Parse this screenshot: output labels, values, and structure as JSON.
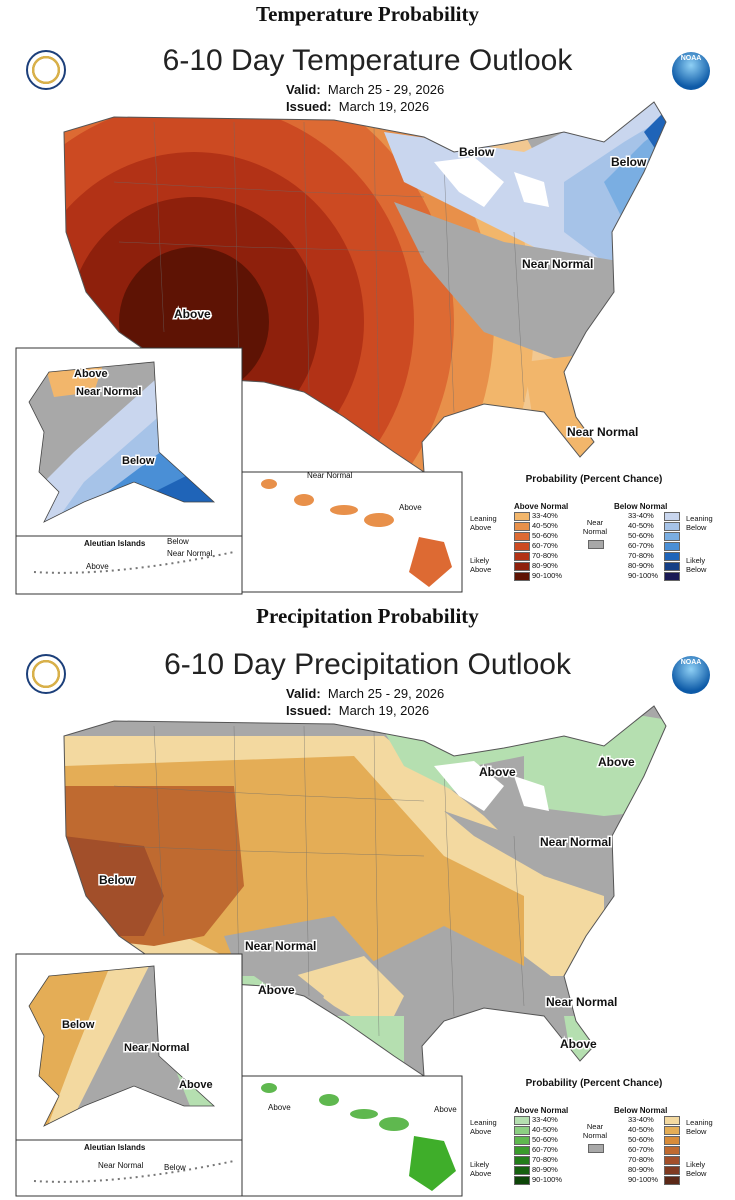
{
  "temperature": {
    "section_title": "Temperature Probability",
    "map_title": "6-10 Day Temperature Outlook",
    "valid_label": "Valid:",
    "valid_value": "March 25 - 29, 2026",
    "issued_label": "Issued:",
    "issued_value": "March 19, 2026",
    "labels": {
      "below_great_lakes": "Below",
      "below_new_england": "Below",
      "near_normal_east": "Near Normal",
      "above_southwest": "Above",
      "near_normal_florida": "Near Normal",
      "ak_above": "Above",
      "ak_near_normal": "Near Normal",
      "ak_below": "Below",
      "aleutian_title": "Aleutian Islands",
      "aleutian_above": "Above",
      "aleutian_below": "Below",
      "aleutian_near_normal": "Near Normal",
      "hi_near_normal": "Near Normal",
      "hi_above": "Above"
    },
    "legend": {
      "title": "Probability (Percent Chance)",
      "above_head": "Above Normal",
      "below_head": "Below Normal",
      "near_normal": "Near Normal",
      "leaning_above": "Leaning Above",
      "likely_above": "Likely Above",
      "leaning_below": "Leaning Below",
      "likely_below": "Likely Below",
      "ranges": [
        "33-40%",
        "40-50%",
        "50-60%",
        "60-70%",
        "70-80%",
        "80-90%",
        "90-100%"
      ],
      "above_colors": [
        "#f2b66b",
        "#e8904a",
        "#dd6a33",
        "#cc4a22",
        "#b23216",
        "#8e200c",
        "#5e1304"
      ],
      "below_colors": [
        "#c9d6ee",
        "#a6c3e8",
        "#7aaee2",
        "#4a8fd6",
        "#1f64b8",
        "#153f86",
        "#1a1a55"
      ],
      "near_color": "#a8a8a8"
    }
  },
  "precipitation": {
    "section_title": "Precipitation Probability",
    "map_title": "6-10 Day Precipitation Outlook",
    "valid_label": "Valid:",
    "valid_value": "March 25 - 29, 2026",
    "issued_label": "Issued:",
    "issued_value": "March 19, 2026",
    "labels": {
      "above_great_lakes": "Above",
      "above_new_england": "Above",
      "near_normal_east": "Near Normal",
      "below_california": "Below",
      "near_normal_southwest": "Near Normal",
      "above_southwest": "Above",
      "near_normal_florida": "Near Normal",
      "above_florida": "Above",
      "ak_below": "Below",
      "ak_near_normal": "Near Normal",
      "ak_above": "Above",
      "aleutian_title": "Aleutian Islands",
      "aleutian_near_normal": "Near Normal",
      "aleutian_below": "Below",
      "hi_above_west": "Above",
      "hi_above_east": "Above"
    },
    "legend": {
      "title": "Probability (Percent Chance)",
      "above_head": "Above Normal",
      "below_head": "Below Normal",
      "near_normal": "Near Normal",
      "leaning_above": "Leaning Above",
      "likely_above": "Likely Above",
      "leaning_below": "Leaning Below",
      "likely_below": "Likely Below",
      "ranges": [
        "33-40%",
        "40-50%",
        "50-60%",
        "60-70%",
        "70-80%",
        "80-90%",
        "90-100%"
      ],
      "above_colors": [
        "#b5dfb0",
        "#8ccf82",
        "#5fb84f",
        "#3a9b2c",
        "#237d1a",
        "#16600f",
        "#0d4508"
      ],
      "below_colors": [
        "#f3d9a0",
        "#e4ad56",
        "#d88c3a",
        "#bf6a30",
        "#a24f2a",
        "#7f3a21",
        "#5b2817"
      ],
      "near_color": "#a8a8a8"
    }
  }
}
